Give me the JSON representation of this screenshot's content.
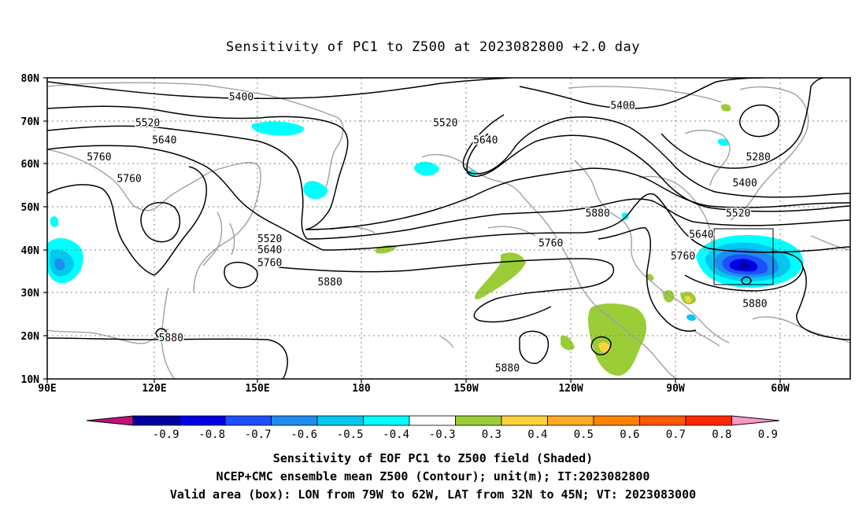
{
  "title": "Sensitivity of PC1 to Z500 at 2023082800 +2.0 day",
  "map": {
    "lon_labels": [
      "90E",
      "120E",
      "150E",
      "180",
      "150W",
      "120W",
      "90W",
      "60W"
    ],
    "lat_labels": [
      "80N",
      "70N",
      "60N",
      "50N",
      "40N",
      "30N",
      "20N",
      "10N"
    ],
    "contour_labels": [
      {
        "text": "5400",
        "lon": 148,
        "lat": 75.5
      },
      {
        "text": "5400",
        "lon": 262,
        "lat": 73.5
      },
      {
        "text": "5520",
        "lon": 120,
        "lat": 69.5
      },
      {
        "text": "5520",
        "lon": 209,
        "lat": 69.5
      },
      {
        "text": "5640",
        "lon": 125,
        "lat": 65.5
      },
      {
        "text": "5640",
        "lon": 221,
        "lat": 65.5
      },
      {
        "text": "5760",
        "lon": 105.5,
        "lat": 61.5
      },
      {
        "text": "5760",
        "lon": 114.5,
        "lat": 56.5
      },
      {
        "text": "5280",
        "lon": 302.5,
        "lat": 61.5
      },
      {
        "text": "5400",
        "lon": 298.5,
        "lat": 55.5
      },
      {
        "text": "5520",
        "lon": 296.5,
        "lat": 48.5
      },
      {
        "text": "5640",
        "lon": 285.5,
        "lat": 43.5
      },
      {
        "text": "5880",
        "lon": 254.5,
        "lat": 48.5
      },
      {
        "text": "5760",
        "lon": 240.5,
        "lat": 41.5
      },
      {
        "text": "5520",
        "lon": 156.5,
        "lat": 42.5
      },
      {
        "text": "5640",
        "lon": 156.5,
        "lat": 40
      },
      {
        "text": "5760",
        "lon": 156.5,
        "lat": 37
      },
      {
        "text": "5760",
        "lon": 280,
        "lat": 38.5
      },
      {
        "text": "5880",
        "lon": 174.5,
        "lat": 32.5
      },
      {
        "text": "5880",
        "lon": 301.5,
        "lat": 27.5
      },
      {
        "text": "5880",
        "lon": 127,
        "lat": 19.5
      },
      {
        "text": "5880",
        "lon": 227.5,
        "lat": 12.5
      }
    ],
    "box": {
      "lon_west_deg": -79,
      "lon_east_deg": -62,
      "lat_south": 32,
      "lat_north": 45
    },
    "colors": {
      "neg_09": "#c0107e",
      "neg_08": "#0000a0",
      "neg_07": "#0000e6",
      "neg_06": "#1e50ff",
      "neg_05": "#1e8cf0",
      "neg_04": "#00c8f0",
      "neg_03": "#00ffff",
      "neutral": "#ffffff",
      "pos_03": "#9bcd37",
      "pos_04": "#ffd23c",
      "pos_05": "#ffaa28",
      "pos_06": "#ff8200",
      "pos_07": "#ff5a00",
      "pos_08": "#ff2800",
      "pos_09": "#ff96c8",
      "coast": "#a0a0a0",
      "grid": "#808080",
      "contour": "#000000"
    }
  },
  "colorbar": {
    "labels": [
      "-0.9",
      "-0.8",
      "-0.7",
      "-0.6",
      "-0.5",
      "-0.4",
      "-0.3",
      "0.3",
      "0.4",
      "0.5",
      "0.6",
      "0.7",
      "0.8",
      "0.9"
    ],
    "colors": [
      "#0000a0",
      "#0000e6",
      "#1e50ff",
      "#1e8cf0",
      "#00c8f0",
      "#00ffff",
      "#ffffff",
      "#9bcd37",
      "#ffd23c",
      "#ffaa28",
      "#ff8200",
      "#ff5a00",
      "#ff2800"
    ],
    "low_arrow_color": "#c0107e",
    "high_arrow_color": "#ff96c8"
  },
  "captions": {
    "line1": "Sensitivity of EOF PC1 to Z500 field (Shaded)",
    "line2": "NCEP+CMC ensemble mean Z500 (Contour); unit(m); IT:2023082800",
    "line3": "Valid area (box): LON from 79W to 62W, LAT from 32N to 45N; VT: 2023083000"
  }
}
